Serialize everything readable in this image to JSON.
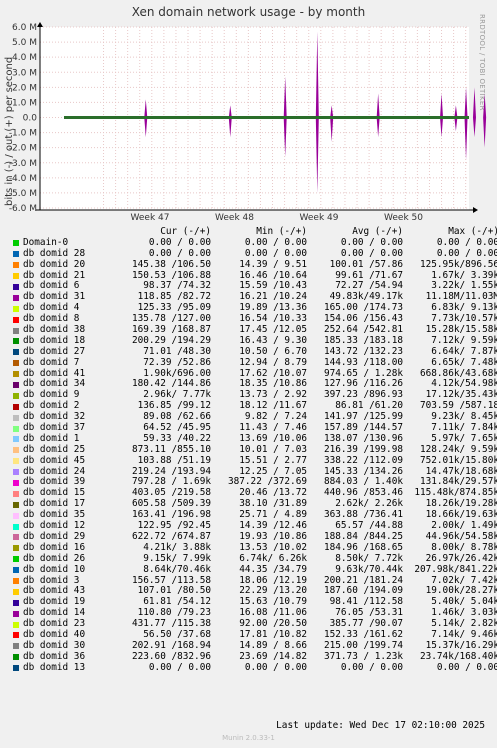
{
  "title": "Xen domain network usage - by month",
  "ylabel": "bits in (-) / out (+) per second",
  "watermark": "RRDTOOL / TOBI OETIKER",
  "last_update": "Last update:  Wed Dec 17 02:10:00 2025",
  "munin": "Munin 2.0.33-1",
  "legend_header": {
    "cur": "Cur (-/+)",
    "min": "Min (-/+)",
    "avg": "Avg (-/+)",
    "max": "Max (-/+)"
  },
  "chart_data": {
    "type": "area",
    "title": "Xen domain network usage - by month",
    "ylabel": "bits in (-) / out (+) per second",
    "xlabel": "",
    "ylim": [
      -6000000,
      6000000
    ],
    "y_ticks": [
      "6.0 M",
      "5.0 M",
      "4.0 M",
      "3.0 M",
      "2.0 M",
      "1.0 M",
      "0.0",
      "-1.0 M",
      "-2.0 M",
      "-3.0 M",
      "-4.0 M",
      "-5.0 M",
      "-6.0 M"
    ],
    "x_ticks": [
      "Week 47",
      "Week 48",
      "Week 49",
      "Week 50"
    ],
    "grid": true,
    "spikes": [
      {
        "week": 46.95,
        "out": 1200000,
        "in": -1300000
      },
      {
        "week": 47.95,
        "out": 800000,
        "in": -1300000
      },
      {
        "week": 48.6,
        "out": 2700000,
        "in": -2600000
      },
      {
        "week": 48.98,
        "out": 5700000,
        "in": -5000000
      },
      {
        "week": 49.15,
        "out": 800000,
        "in": -1600000
      },
      {
        "week": 49.7,
        "out": 1600000,
        "in": -1300000
      },
      {
        "week": 50.45,
        "out": 1600000,
        "in": -1300000
      },
      {
        "week": 50.62,
        "out": 800000,
        "in": -900000
      },
      {
        "week": 50.74,
        "out": 2000000,
        "in": -2800000
      },
      {
        "week": 50.84,
        "out": 2000000,
        "in": -1300000
      },
      {
        "week": 50.96,
        "out": 1600000,
        "in": -2000000
      }
    ],
    "series": [
      {
        "name": "Domain-0",
        "color": "#00cc00",
        "cur": "0.00 / 0.00",
        "min": "0.00 / 0.00",
        "avg": "0.00 / 0.00",
        "max": "0.00 / 0.00"
      },
      {
        "name": "db domid 28",
        "color": "#0066b3",
        "cur": "0.00 / 0.00",
        "min": "0.00 / 0.00",
        "avg": "0.00 / 0.00",
        "max": "0.00 / 0.00"
      },
      {
        "name": "db domid 20",
        "color": "#ff8000",
        "cur": "145.38 /106.50",
        "min": "14.39 / 9.51",
        "avg": "100.01 /57.86",
        "max": "125.95k/896.56"
      },
      {
        "name": "db domid 21",
        "color": "#ffcc00",
        "cur": "150.53 /106.88",
        "min": "16.46 /10.64",
        "avg": "99.61 /71.67",
        "max": "1.67k/ 3.39k"
      },
      {
        "name": "db domid 6",
        "color": "#330099",
        "cur": "98.37 /74.32",
        "min": "15.59 /10.43",
        "avg": "72.27 /54.94",
        "max": "3.22k/ 1.55k"
      },
      {
        "name": "db domid 31",
        "color": "#990099",
        "cur": "118.85 /82.72",
        "min": "16.21 /10.24",
        "avg": "49.83k/49.17k",
        "max": "11.18M/11.03M"
      },
      {
        "name": "db domid 4",
        "color": "#ccff00",
        "cur": "125.33 /95.09",
        "min": "19.89 /13.36",
        "avg": "165.00 /174.73",
        "max": "6.83k/ 9.13k"
      },
      {
        "name": "db domid 8",
        "color": "#ff0000",
        "cur": "135.78 /127.00",
        "min": "16.54 /10.33",
        "avg": "154.06 /156.43",
        "max": "7.73k/10.57k"
      },
      {
        "name": "db domid 38",
        "color": "#808080",
        "cur": "169.39 /168.87",
        "min": "17.45 /12.05",
        "avg": "252.64 /542.81",
        "max": "15.28k/15.58k"
      },
      {
        "name": "db domid 18",
        "color": "#008f00",
        "cur": "200.29 /194.29",
        "min": "16.43 / 9.30",
        "avg": "185.33 /183.18",
        "max": "7.12k/ 9.59k"
      },
      {
        "name": "db domid 27",
        "color": "#00487d",
        "cur": "71.01 /48.30",
        "min": "10.50 / 6.70",
        "avg": "143.72 /132.23",
        "max": "6.64k/ 7.87k"
      },
      {
        "name": "db domid 7",
        "color": "#b35a00",
        "cur": "72.39 /52.86",
        "min": "12.94 / 8.79",
        "avg": "144.93 /118.00",
        "max": "6.65k/ 7.48k"
      },
      {
        "name": "db domid 41",
        "color": "#b38f00",
        "cur": "1.90k/696.00",
        "min": "17.62 /10.07",
        "avg": "974.65 / 1.28k",
        "max": "668.86k/43.68k"
      },
      {
        "name": "db domid 34",
        "color": "#6b006b",
        "cur": "180.42 /144.86",
        "min": "18.35 /10.86",
        "avg": "127.96 /116.26",
        "max": "4.12k/54.98k"
      },
      {
        "name": "db domid 9",
        "color": "#8fb300",
        "cur": "2.96k/ 7.77k",
        "min": "13.73 / 2.92",
        "avg": "397.23 /896.93",
        "max": "17.12k/35.43k"
      },
      {
        "name": "db domid 2",
        "color": "#b30000",
        "cur": "136.85 /99.12",
        "min": "18.12 /11.67",
        "avg": "86.81 /61.20",
        "max": "703.59 /587.18"
      },
      {
        "name": "db domid 32",
        "color": "#bebebe",
        "cur": "89.08 /62.66",
        "min": "9.82 / 7.24",
        "avg": "141.97 /125.99",
        "max": "9.23k/ 8.45k"
      },
      {
        "name": "db domid 37",
        "color": "#80ff80",
        "cur": "64.52 /45.95",
        "min": "11.43 / 7.46",
        "avg": "157.89 /144.57",
        "max": "7.11k/ 7.84k"
      },
      {
        "name": "db domid 1",
        "color": "#80c9ff",
        "cur": "59.33 /40.22",
        "min": "13.69 /10.06",
        "avg": "138.07 /130.96",
        "max": "5.97k/ 7.65k"
      },
      {
        "name": "db domid 25",
        "color": "#ffc080",
        "cur": "873.11 /855.10",
        "min": "10.01 / 7.03",
        "avg": "216.39 /199.98",
        "max": "128.24k/ 9.59k"
      },
      {
        "name": "db domid 45",
        "color": "#ffe680",
        "cur": "103.88 /51.19",
        "min": "15.51 / 2.77",
        "avg": "338.22 /112.09",
        "max": "752.01k/15.80k"
      },
      {
        "name": "db domid 24",
        "color": "#aa80ff",
        "cur": "219.24 /193.94",
        "min": "12.25 / 7.05",
        "avg": "145.33 /134.26",
        "max": "14.47k/18.68k"
      },
      {
        "name": "db domid 39",
        "color": "#ee00cc",
        "cur": "797.28 / 1.69k",
        "min": "387.22 /372.69",
        "avg": "884.03 / 1.40k",
        "max": "131.84k/29.57k"
      },
      {
        "name": "db domid 15",
        "color": "#ff8080",
        "cur": "403.05 /219.58",
        "min": "20.46 /13.72",
        "avg": "440.96 /853.46",
        "max": "115.48k/874.85k"
      },
      {
        "name": "db domid 17",
        "color": "#666600",
        "cur": "605.58 /509.39",
        "min": "38.10 /31.89",
        "avg": "2.62k/ 2.26k",
        "max": "18.26k/19.28k"
      },
      {
        "name": "db domid 35",
        "color": "#ffbfff",
        "cur": "163.41 /196.98",
        "min": "25.71 / 4.89",
        "avg": "363.88 /736.41",
        "max": "18.66k/19.63k"
      },
      {
        "name": "db domid 12",
        "color": "#00ffcc",
        "cur": "122.95 /92.45",
        "min": "14.39 /12.46",
        "avg": "65.57 /44.88",
        "max": "2.00k/ 1.49k"
      },
      {
        "name": "db domid 29",
        "color": "#cc6699",
        "cur": "622.72 /674.87",
        "min": "19.93 /10.86",
        "avg": "188.84 /844.25",
        "max": "44.96k/54.58k"
      },
      {
        "name": "db domid 16",
        "color": "#999900",
        "cur": "4.21k/ 3.88k",
        "min": "13.53 /10.02",
        "avg": "184.96 /168.65",
        "max": "8.00k/ 8.78k"
      },
      {
        "name": "db domid 26",
        "color": "#00cc00",
        "cur": "9.15k/ 7.99k",
        "min": "6.74k/ 6.26k",
        "avg": "8.50k/ 7.72k",
        "max": "26.97k/26.42k"
      },
      {
        "name": "db domid 10",
        "color": "#0066b3",
        "cur": "8.64k/70.46k",
        "min": "44.35 /34.79",
        "avg": "9.63k/70.44k",
        "max": "207.98k/841.22k"
      },
      {
        "name": "db domid 3",
        "color": "#ff8000",
        "cur": "156.57 /113.58",
        "min": "18.06 /12.19",
        "avg": "200.21 /181.24",
        "max": "7.02k/ 7.42k"
      },
      {
        "name": "db domid 43",
        "color": "#ffcc00",
        "cur": "107.01 /80.50",
        "min": "22.29 /13.20",
        "avg": "187.60 /194.09",
        "max": "19.00k/28.27k"
      },
      {
        "name": "db domid 19",
        "color": "#330099",
        "cur": "61.81 /54.12",
        "min": "15.63 /10.79",
        "avg": "98.41 /112.58",
        "max": "5.40k/ 5.04k"
      },
      {
        "name": "db domid 14",
        "color": "#990099",
        "cur": "110.80 /79.23",
        "min": "16.08 /11.06",
        "avg": "76.05 /53.31",
        "max": "1.46k/ 3.03k"
      },
      {
        "name": "db domid 23",
        "color": "#ccff00",
        "cur": "431.77 /115.38",
        "min": "92.00 /20.50",
        "avg": "385.77 /90.07",
        "max": "5.14k/ 2.82k"
      },
      {
        "name": "db domid 40",
        "color": "#ff0000",
        "cur": "56.50 /37.68",
        "min": "17.81 /10.82",
        "avg": "152.33 /161.62",
        "max": "7.14k/ 9.46k"
      },
      {
        "name": "db domid 30",
        "color": "#808080",
        "cur": "202.91 /168.94",
        "min": "14.89 / 8.66",
        "avg": "215.00 /199.74",
        "max": "15.37k/16.29k"
      },
      {
        "name": "db domid 36",
        "color": "#008f00",
        "cur": "223.60 /832.96",
        "min": "23.69 /14.82",
        "avg": "371.73 / 1.23k",
        "max": "23.74k/168.40k"
      },
      {
        "name": "db domid 13",
        "color": "#00487d",
        "cur": "0.00 / 0.00",
        "min": "0.00 / 0.00",
        "avg": "0.00 / 0.00",
        "max": "0.00 / 0.00"
      }
    ]
  }
}
